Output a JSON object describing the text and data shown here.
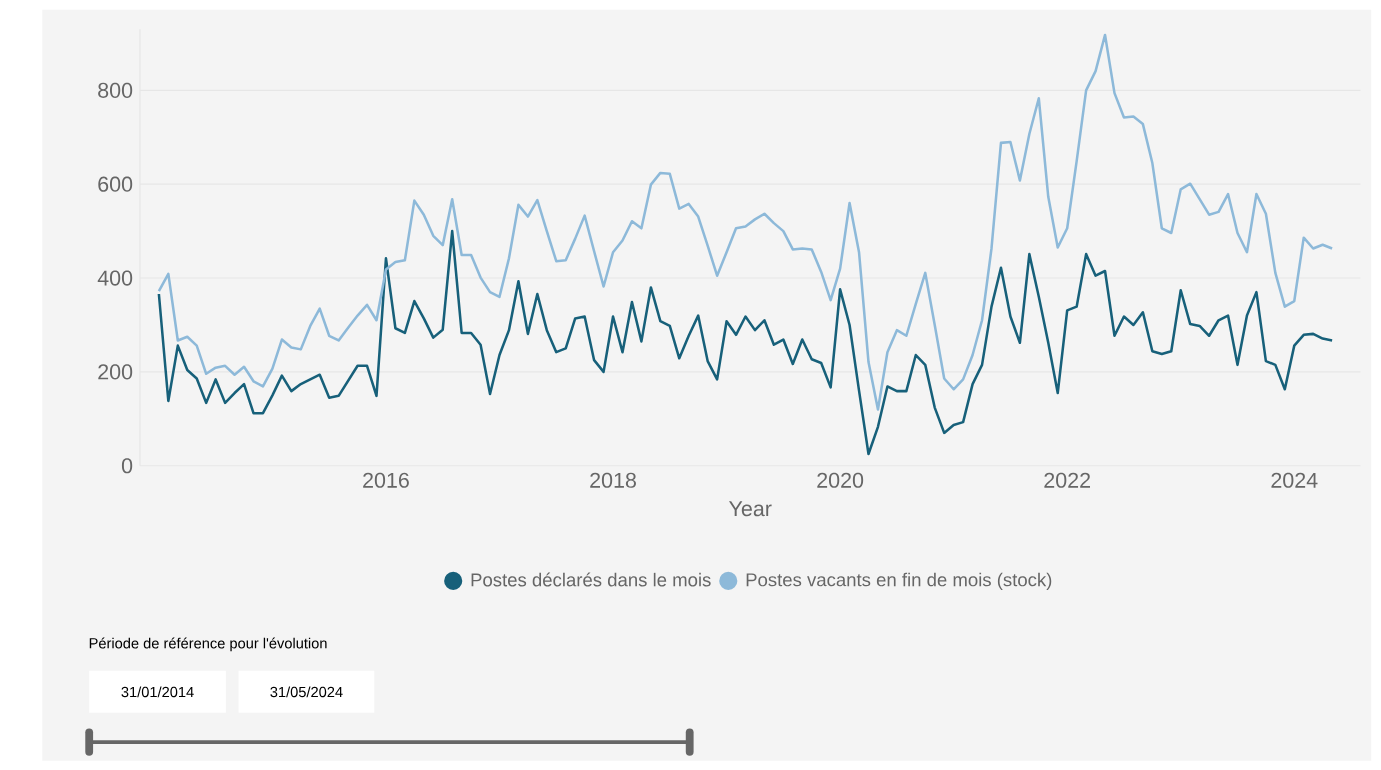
{
  "chart_data": {
    "type": "line",
    "x": [
      "2014-01",
      "2014-02",
      "2014-03",
      "2014-04",
      "2014-05",
      "2014-06",
      "2014-07",
      "2014-08",
      "2014-09",
      "2014-10",
      "2014-11",
      "2014-12",
      "2015-01",
      "2015-02",
      "2015-03",
      "2015-04",
      "2015-05",
      "2015-06",
      "2015-07",
      "2015-08",
      "2015-09",
      "2015-10",
      "2015-11",
      "2015-12",
      "2016-01",
      "2016-02",
      "2016-03",
      "2016-04",
      "2016-05",
      "2016-06",
      "2016-07",
      "2016-08",
      "2016-09",
      "2016-10",
      "2016-11",
      "2016-12",
      "2017-01",
      "2017-02",
      "2017-03",
      "2017-04",
      "2017-05",
      "2017-06",
      "2017-07",
      "2017-08",
      "2017-09",
      "2017-10",
      "2017-11",
      "2017-12",
      "2018-01",
      "2018-02",
      "2018-03",
      "2018-04",
      "2018-05",
      "2018-06",
      "2018-07",
      "2018-08",
      "2018-09",
      "2018-10",
      "2018-11",
      "2018-12",
      "2019-01",
      "2019-02",
      "2019-03",
      "2019-04",
      "2019-05",
      "2019-06",
      "2019-07",
      "2019-08",
      "2019-09",
      "2019-10",
      "2019-11",
      "2019-12",
      "2020-01",
      "2020-02",
      "2020-03",
      "2020-04",
      "2020-05",
      "2020-06",
      "2020-07",
      "2020-08",
      "2020-09",
      "2020-10",
      "2020-11",
      "2020-12",
      "2021-01",
      "2021-02",
      "2021-03",
      "2021-04",
      "2021-05",
      "2021-06",
      "2021-07",
      "2021-08",
      "2021-09",
      "2021-10",
      "2021-11",
      "2021-12",
      "2022-01",
      "2022-02",
      "2022-03",
      "2022-04",
      "2022-05",
      "2022-06",
      "2022-07",
      "2022-08",
      "2022-09",
      "2022-10",
      "2022-11",
      "2022-12",
      "2023-01",
      "2023-02",
      "2023-03",
      "2023-04",
      "2023-05",
      "2023-06",
      "2023-07",
      "2023-08",
      "2023-09",
      "2023-10",
      "2023-11",
      "2023-12",
      "2024-01",
      "2024-02",
      "2024-03",
      "2024-04",
      "2024-05"
    ],
    "series": [
      {
        "name": "Postes déclarés dans le mois",
        "color": "#17607a",
        "values": [
          366,
          138,
          256,
          204,
          186,
          134,
          184,
          134,
          155,
          174,
          112,
          112,
          150,
          192,
          159,
          174,
          184,
          194,
          145,
          149,
          181,
          213,
          213,
          149,
          442,
          293,
          283,
          351,
          314,
          273,
          290,
          500,
          283,
          283,
          258,
          153,
          236,
          289,
          393,
          281,
          366,
          289,
          242,
          250,
          314,
          318,
          225,
          200,
          318,
          242,
          349,
          265,
          380,
          308,
          298,
          229,
          277,
          320,
          223,
          184,
          308,
          279,
          318,
          289,
          310,
          258,
          269,
          217,
          269,
          227,
          219,
          167,
          376,
          300,
          160,
          25,
          83,
          169,
          159,
          159,
          236,
          215,
          124,
          70,
          87,
          93,
          174,
          215,
          339,
          422,
          318,
          262,
          451,
          360,
          262,
          155,
          331,
          339,
          451,
          405,
          415,
          277,
          318,
          300,
          327,
          244,
          238,
          244,
          374,
          302,
          298,
          277,
          310,
          320,
          215,
          320,
          370,
          223,
          215,
          163,
          256,
          279,
          281,
          271,
          267
        ]
      },
      {
        "name": "Postes vacants en fin de mois (stock)",
        "color": "#8db9d9",
        "values": [
          372,
          409,
          267,
          275,
          256,
          196,
          209,
          213,
          194,
          211,
          180,
          169,
          207,
          269,
          252,
          248,
          298,
          335,
          277,
          267,
          294,
          320,
          343,
          310,
          418,
          434,
          438,
          565,
          535,
          490,
          470,
          568,
          449,
          449,
          401,
          370,
          360,
          442,
          556,
          531,
          566,
          500,
          436,
          438,
          484,
          533,
          457,
          382,
          455,
          480,
          521,
          506,
          599,
          624,
          622,
          548,
          558,
          531,
          469,
          405,
          455,
          506,
          510,
          525,
          537,
          517,
          500,
          461,
          463,
          461,
          413,
          353,
          420,
          560,
          455,
          221,
          120,
          242,
          289,
          277,
          345,
          411,
          300,
          186,
          163,
          184,
          236,
          310,
          463,
          688,
          690,
          608,
          707,
          783,
          573,
          465,
          506,
          649,
          800,
          841,
          918,
          794,
          742,
          744,
          728,
          645,
          506,
          496,
          589,
          601,
          568,
          535,
          541,
          579,
          496,
          455,
          579,
          537,
          411,
          339,
          351,
          486,
          463,
          471,
          463
        ]
      }
    ],
    "xlabel": "Year",
    "xlim": [
      "2013-11",
      "2024-08"
    ],
    "xticks": [
      {
        "value": "2016",
        "label": "2016"
      },
      {
        "value": "2018",
        "label": "2018"
      },
      {
        "value": "2020",
        "label": "2020"
      },
      {
        "value": "2022",
        "label": "2022"
      },
      {
        "value": "2024",
        "label": "2024"
      }
    ],
    "ylim": [
      0,
      930
    ],
    "yticks": [
      0,
      200,
      400,
      600,
      800
    ],
    "grid": "y",
    "legend": "bottom",
    "marker": "none",
    "line_style": "solid",
    "annotations": [
      "Période de référence pour l'évolution",
      "31/01/2014",
      "31/05/2024"
    ]
  }
}
